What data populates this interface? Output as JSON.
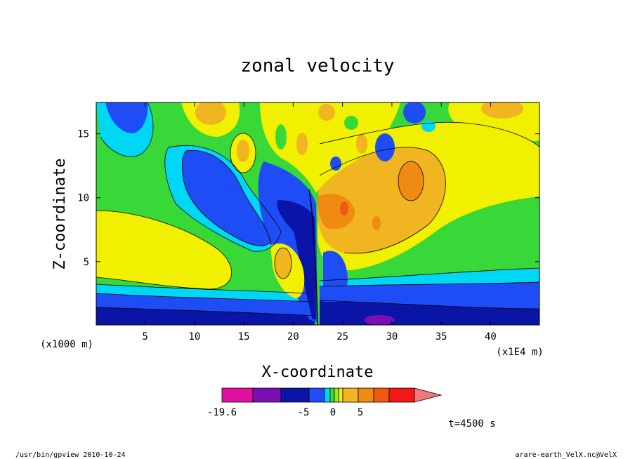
{
  "chart_data": {
    "type": "heatmap",
    "title": "zonal velocity",
    "xlabel": "X-coordinate",
    "ylabel": "Z-coordinate",
    "x_unit": "(x1E4 m)",
    "y_unit": "(x1000 m)",
    "xlim": [
      0.05,
      44.95
    ],
    "ylim": [
      0.05,
      17.45
    ],
    "x_ticks": [
      5,
      10,
      15,
      20,
      25,
      30,
      35,
      40
    ],
    "y_ticks": [
      5,
      10,
      15
    ],
    "colorbar": {
      "colors": [
        "#e0109e",
        "#7a10b4",
        "#0a15a8",
        "#1e4cf5",
        "#00d7f5",
        "#38d838",
        "#9ee820",
        "#f0f000",
        "#f0b520",
        "#f08a10",
        "#f05a10",
        "#f01818",
        "#f07878"
      ],
      "tick_labels": [
        "-19.6",
        "-5",
        "0",
        "5"
      ],
      "min": -19.6
    },
    "time_label": "t=4500 s"
  },
  "footer": {
    "left": "/usr/bin/gpview  2010-10-24",
    "right": "arare-earth_VelX.nc@VelX"
  }
}
